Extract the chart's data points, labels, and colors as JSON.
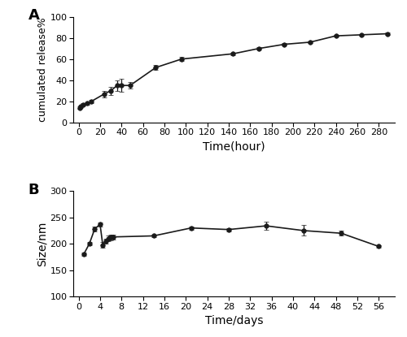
{
  "panel_A": {
    "x": [
      1,
      2,
      4,
      8,
      12,
      24,
      30,
      36,
      40,
      48,
      72,
      96,
      144,
      168,
      192,
      216,
      240,
      264,
      288
    ],
    "y": [
      14,
      15,
      17,
      18,
      20,
      27,
      30,
      35,
      35,
      35,
      52,
      60,
      65,
      70,
      74,
      76,
      82,
      83,
      84
    ],
    "yerr": [
      1.0,
      1.0,
      1.0,
      1.0,
      1.5,
      3.0,
      4.0,
      5.0,
      6.0,
      3.0,
      2.5,
      2.0,
      1.0,
      1.0,
      1.0,
      1.0,
      1.0,
      1.0,
      1.0
    ],
    "xlabel": "Time(hour)",
    "ylabel": "cumulated release%",
    "xlim": [
      -5,
      295
    ],
    "ylim": [
      0,
      100
    ],
    "xticks": [
      0,
      20,
      40,
      60,
      80,
      100,
      120,
      140,
      160,
      180,
      200,
      220,
      240,
      260,
      280
    ],
    "yticks": [
      0,
      20,
      40,
      60,
      80,
      100
    ],
    "label": "A"
  },
  "panel_B": {
    "x": [
      1,
      2,
      3,
      4,
      4.5,
      5,
      5.5,
      6,
      6.5,
      14,
      21,
      28,
      35,
      42,
      49,
      56
    ],
    "y": [
      181,
      200,
      228,
      237,
      198,
      205,
      210,
      212,
      213,
      215,
      230,
      227,
      234,
      225,
      220,
      195
    ],
    "yerr": [
      3,
      3,
      4,
      4,
      5,
      5,
      5,
      5,
      5,
      3,
      3,
      3,
      8,
      10,
      5,
      3
    ],
    "xlabel": "Time/days",
    "ylabel": "Size/nm",
    "xlim": [
      -1,
      59
    ],
    "ylim": [
      100,
      300
    ],
    "xticks": [
      0,
      4,
      8,
      12,
      16,
      20,
      24,
      28,
      32,
      36,
      40,
      44,
      48,
      52,
      56
    ],
    "yticks": [
      100,
      150,
      200,
      250,
      300
    ],
    "label": "B"
  },
  "line_color": "#1a1a1a",
  "marker": "o",
  "markersize": 4,
  "linewidth": 1.2,
  "capsize": 2.5,
  "background_color": "#ffffff",
  "label_fontsize": 13,
  "tick_fontsize": 8,
  "axis_label_fontsize": 10
}
